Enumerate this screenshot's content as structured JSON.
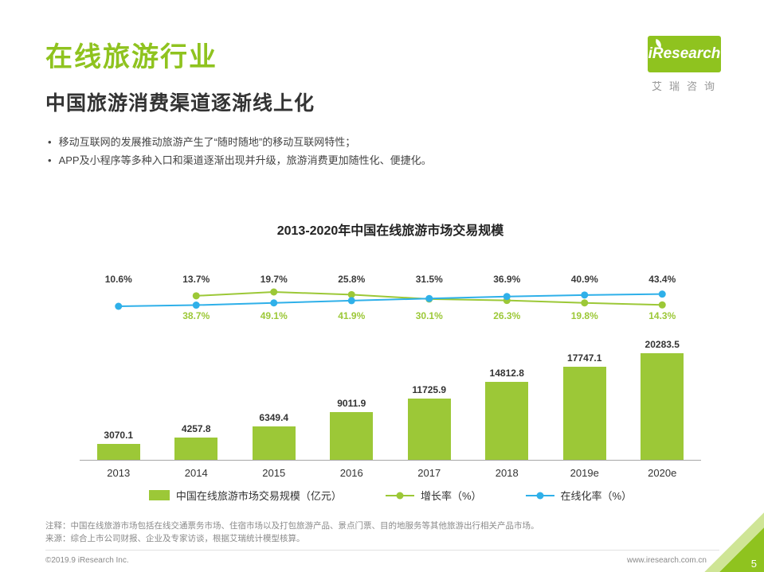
{
  "page": {
    "title": "在线旅游行业",
    "subtitle": "中国旅游消费渠道逐渐线上化",
    "bullets": [
      "移动互联网的发展推动旅游产生了“随时随地”的移动互联网特性；",
      "APP及小程序等多种入口和渠道逐渐出现并升级，旅游消费更加随性化、便捷化。"
    ]
  },
  "logo": {
    "name": "iResearch",
    "caption": "艾瑞咨询"
  },
  "colors": {
    "accent": "#8FC31F",
    "bar": "#9CC837",
    "growth_line": "#9CC837",
    "online_line": "#2FB0E9",
    "corner_light": "#CFE596"
  },
  "chart_data": {
    "type": "bar",
    "title": "2013-2020年中国在线旅游市场交易规模",
    "categories": [
      "2013",
      "2014",
      "2015",
      "2016",
      "2017",
      "2018",
      "2019e",
      "2020e"
    ],
    "series": [
      {
        "name": "中国在线旅游市场交易规模（亿元）",
        "type": "bar",
        "color": "#9CC837",
        "values": [
          3070.1,
          4257.8,
          6349.4,
          9011.9,
          11725.9,
          14812.8,
          17747.1,
          20283.5
        ]
      },
      {
        "name": "增长率（%）",
        "type": "line",
        "color": "#9CC837",
        "values": [
          null,
          38.7,
          49.1,
          41.9,
          30.1,
          26.3,
          19.8,
          14.3
        ]
      },
      {
        "name": "在线化率（%）",
        "type": "line",
        "color": "#2FB0E9",
        "values": [
          10.6,
          13.7,
          19.7,
          25.8,
          31.5,
          36.9,
          40.9,
          43.4
        ]
      }
    ],
    "xlabel": "",
    "ylabel": "",
    "bar_ylim": [
      0,
      20283.5
    ],
    "grid": false,
    "legend_position": "bottom"
  },
  "footer": {
    "note": "注释：中国在线旅游市场包括在线交通票务市场、住宿市场以及打包旅游产品、景点门票、目的地服务等其他旅游出行相关产品市场。",
    "source": "来源：综合上市公司财报、企业及专家访谈，根据艾瑞统计模型核算。",
    "copyright": "©2019.9 iResearch Inc.",
    "website": "www.iresearch.com.cn",
    "page_number": "5"
  }
}
